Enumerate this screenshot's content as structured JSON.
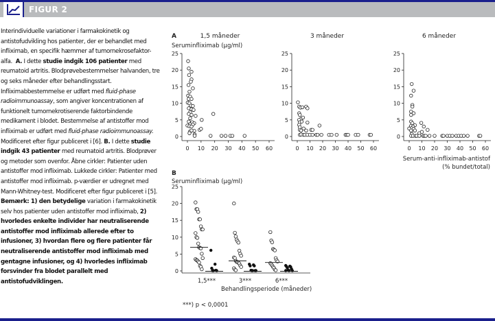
{
  "header": {
    "title": "FIGUR 2",
    "icon": "line-chart-icon"
  },
  "caption": {
    "s1": "Interindividuelle variationer i farmakokinetik og antistofudvikling hos patienter, der er behandlet med infliximab, en specifik hæmmer af tumornekrosefaktor-alfa.",
    "a_label": "A.",
    "s2a": "I dette",
    "s2b": "studie indgik 106 patienter",
    "s2c": "med reumatoid artritis. Blodprøvebestemmelser halvanden, tre og seks måneder efter behandlingsstart. Infliximabbestemmelse er udført med",
    "i1": "fluid-phase radioimmunoassay",
    "s3": ", som angiver koncentrationen af funktionelt tumornekrotiserende faktorbindende medikament i blodet. Bestemmelse af antistoffer mod infliximab er udført med",
    "i2": "fluid-phase radioimmunoassay.",
    "s4": "Modificeret efter figur publiceret i [6].",
    "b_label": "B.",
    "s5a": "I dette",
    "s5b": "studie indgik 43 patienter",
    "s5c": "med reumatoid artritis. Blodprøver og metoder som ovenfor. Åbne cirkler: Patienter uden antistoffer mod infliximab. Lukkede cirkler: Patienter med antistoffer mod infliximab. p-værdier er udregnet med Mann-Whitney-test. Modificeret efter figur publiceret i [5].",
    "s6": "Bemærk: 1) den betydelige",
    "s7": "variation i farmakokinetik selv hos patienter uden antistoffer mod infliximab,",
    "s8": "2) hvorledes enkelte individer har neutraliserende antistoffer mod infliximab allerede efter to infusioner, 3) hvordan flere og flere patienter får neutraliserende antistoffer mod infliximab med gentagne infusioner, og 4) hvorledes infliximab forsvinder fra blodet parallelt med antistofudviklingen."
  },
  "chart_data": [
    {
      "type": "scatter",
      "panel": "A",
      "title": "1,5 måneder",
      "ylabel": "Seruminfliximab (µg/ml)",
      "xlabel": "",
      "xlim": [
        0,
        60
      ],
      "ylim": [
        0,
        25
      ],
      "xticks": [
        "0",
        "10",
        "20",
        "30",
        "40",
        "50",
        "60"
      ],
      "yticks": [
        "0",
        "5",
        "10",
        "15",
        "20",
        "25"
      ],
      "points": [
        [
          0.5,
          22.7
        ],
        [
          1,
          20.5
        ],
        [
          3,
          19.5
        ],
        [
          1.2,
          18.5
        ],
        [
          3,
          17.2
        ],
        [
          2.5,
          16.5
        ],
        [
          0.8,
          15.5
        ],
        [
          4,
          14.5
        ],
        [
          1.5,
          13.5
        ],
        [
          0.5,
          12.3
        ],
        [
          2,
          12
        ],
        [
          1,
          11.3
        ],
        [
          3,
          11.3
        ],
        [
          0.2,
          10.2
        ],
        [
          1.5,
          10
        ],
        [
          2.5,
          9.3
        ],
        [
          4,
          9.2
        ],
        [
          1,
          8.5
        ],
        [
          3,
          8.2
        ],
        [
          4.5,
          8
        ],
        [
          2,
          7.3
        ],
        [
          1,
          6.8
        ],
        [
          3,
          6.5
        ],
        [
          6,
          6.2
        ],
        [
          2,
          5.5
        ],
        [
          1,
          4.5
        ],
        [
          3.5,
          4.3
        ],
        [
          5,
          4
        ],
        [
          2,
          3.7
        ],
        [
          4,
          3.6
        ],
        [
          0,
          3.3
        ],
        [
          1.5,
          3.1
        ],
        [
          3,
          3
        ],
        [
          1.8,
          1.5
        ],
        [
          1.5,
          1
        ],
        [
          5,
          1.7
        ],
        [
          5.3,
          0.6
        ],
        [
          5.3,
          0.2
        ],
        [
          3,
          1.8
        ],
        [
          9,
          2
        ],
        [
          10,
          2.3
        ],
        [
          10.5,
          5
        ],
        [
          19,
          6.8
        ],
        [
          17,
          0.2
        ],
        [
          25,
          0.2
        ],
        [
          28,
          0.2
        ],
        [
          31.5,
          0.2
        ],
        [
          33,
          0.2
        ],
        [
          42,
          0.2
        ]
      ]
    },
    {
      "type": "scatter",
      "panel": "A",
      "title": "3 måneder",
      "xlim": [
        0,
        60
      ],
      "ylim": [
        0,
        25
      ],
      "xticks": [
        "0",
        "10",
        "20",
        "30",
        "40",
        "50",
        "60"
      ],
      "yticks": [
        "0",
        "5",
        "10",
        "15",
        "20",
        "25"
      ],
      "points": [
        [
          0.5,
          10.3
        ],
        [
          1.5,
          9
        ],
        [
          2.5,
          8.7
        ],
        [
          4,
          8.8
        ],
        [
          7,
          9
        ],
        [
          8,
          8.5
        ],
        [
          1.5,
          7
        ],
        [
          2,
          6.5
        ],
        [
          3,
          5.3
        ],
        [
          4.5,
          5.7
        ],
        [
          1.5,
          5
        ],
        [
          2,
          4.3
        ],
        [
          3.5,
          4.5
        ],
        [
          1.5,
          3.5
        ],
        [
          2,
          2.8
        ],
        [
          8,
          4.2
        ],
        [
          2,
          2
        ],
        [
          3,
          1.8
        ],
        [
          5,
          2.4
        ],
        [
          7,
          1.8
        ],
        [
          11,
          2
        ],
        [
          12,
          2
        ],
        [
          17.5,
          3.3
        ],
        [
          2,
          0.5
        ],
        [
          3,
          0.6
        ],
        [
          5,
          0.5
        ],
        [
          6,
          0.5
        ],
        [
          8,
          0.5
        ],
        [
          10,
          0.5
        ],
        [
          12,
          0.5
        ],
        [
          15,
          0.5
        ],
        [
          16,
          0.5
        ],
        [
          19,
          0.5
        ],
        [
          25,
          0.5
        ],
        [
          27,
          0.5
        ],
        [
          31,
          0.5
        ],
        [
          38,
          0.5
        ],
        [
          39,
          0.5
        ],
        [
          40,
          0.5
        ],
        [
          46,
          0.5
        ],
        [
          48,
          0.5
        ],
        [
          57,
          0.5
        ],
        [
          58,
          0.5
        ]
      ]
    },
    {
      "type": "scatter",
      "panel": "A",
      "title": "6 måneder",
      "xlabel": "Serum-anti-infliximab-antistof",
      "xlabel2": "(% bundet/total)",
      "xlim": [
        0,
        60
      ],
      "ylim": [
        0,
        25
      ],
      "xticks": [
        "0",
        "10",
        "20",
        "30",
        "40",
        "50",
        "60"
      ],
      "yticks": [
        "0",
        "5",
        "10",
        "15",
        "20",
        "25"
      ],
      "points": [
        [
          2,
          15.8
        ],
        [
          3.5,
          13.8
        ],
        [
          1.5,
          12.3
        ],
        [
          2.5,
          9.5
        ],
        [
          2.5,
          9
        ],
        [
          1.5,
          7.5
        ],
        [
          3.5,
          7
        ],
        [
          1.5,
          6.5
        ],
        [
          1.5,
          4.5
        ],
        [
          2.5,
          4
        ],
        [
          4.5,
          3.4
        ],
        [
          1.5,
          3.2
        ],
        [
          3,
          3
        ],
        [
          2,
          2.5
        ],
        [
          0,
          2.4
        ],
        [
          3.5,
          2.3
        ],
        [
          1.5,
          1.8
        ],
        [
          4.5,
          1.8
        ],
        [
          8,
          1
        ],
        [
          10,
          1.4
        ],
        [
          9.5,
          4.1
        ],
        [
          11.5,
          3
        ],
        [
          14.5,
          2
        ],
        [
          2,
          0.8
        ],
        [
          1.5,
          0.2
        ],
        [
          3,
          0.2
        ],
        [
          5,
          0.2
        ],
        [
          6,
          0.2
        ],
        [
          8,
          0.2
        ],
        [
          11,
          0.2
        ],
        [
          12,
          0.2
        ],
        [
          13,
          0.2
        ],
        [
          16,
          0.2
        ],
        [
          20,
          0.2
        ],
        [
          26,
          0.2
        ],
        [
          27,
          0.2
        ],
        [
          30,
          0.2
        ],
        [
          32,
          0.2
        ],
        [
          34,
          0.2
        ],
        [
          37,
          0.2
        ],
        [
          39,
          0.2
        ],
        [
          41,
          0.2
        ],
        [
          43,
          0.2
        ],
        [
          46,
          0.2
        ],
        [
          55,
          0.2
        ],
        [
          56,
          0.2
        ]
      ]
    },
    {
      "type": "scatter",
      "panel": "B",
      "ylabel": "Seruminfliximab (µg/ml)",
      "xlabel": "Behandlingsperiode (måneder)",
      "ylim": [
        0,
        25
      ],
      "yticks": [
        "0",
        "5",
        "10",
        "15",
        "20",
        "25"
      ],
      "categories": [
        "1,5***",
        "3***",
        "6***"
      ],
      "open": [
        [
          20.3,
          18.3,
          18.3,
          17.5,
          15.3,
          15.3,
          13.2,
          12.3,
          12.3,
          11.2,
          10,
          9.8,
          8.1,
          7,
          6.8,
          6.7,
          5.1,
          3.8,
          3.5,
          3.2,
          3.1,
          2.8,
          2.5,
          1.5,
          1.2,
          0.5
        ],
        [
          20,
          11.3,
          10.2,
          9.3,
          8.8,
          8.4,
          6,
          5.1,
          4.5,
          4,
          3.8,
          3,
          2.7,
          2.6,
          2.4,
          2.2,
          1.6,
          1.2,
          0.8,
          0.4,
          0.2
        ],
        [
          11.5,
          9,
          8.5,
          6.5,
          6.3,
          6.1,
          3.8,
          3.2,
          2.8,
          2.3,
          2,
          1.6,
          1.2,
          0.9,
          0.4,
          0.2
        ]
      ],
      "closed": [
        [
          6.1,
          2,
          0.8,
          0.2,
          0.1,
          0.1,
          0.1
        ],
        [
          2,
          1.8,
          1.5,
          1.5,
          0.2,
          0.1,
          0.1,
          0.1,
          0.1
        ],
        [
          1.6,
          1.4,
          1.3,
          1.2,
          0.9,
          0.6,
          0.2,
          0.1,
          0.1,
          0.1
        ]
      ],
      "median_open": [
        7,
        3,
        2.5
      ],
      "median_closed": [
        0,
        0,
        0
      ],
      "footnote": "***) p < 0,0001"
    }
  ]
}
